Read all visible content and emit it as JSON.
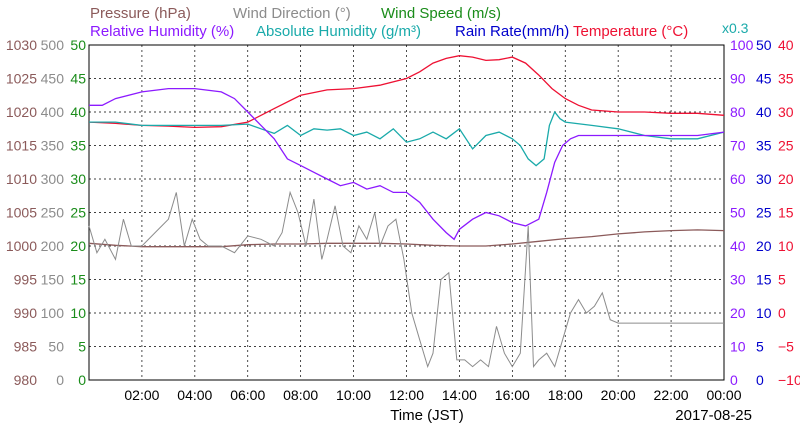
{
  "chart_data": {
    "type": "line",
    "xlabel": "Time (JST)",
    "date": "2017-08-25",
    "x_ticks": [
      "02:00",
      "04:00",
      "06:00",
      "08:00",
      "10:00",
      "12:00",
      "14:00",
      "16:00",
      "18:00",
      "20:00",
      "22:00",
      "00:00"
    ],
    "legend": {
      "row1": [
        {
          "text": "Pressure (hPa)",
          "color": "#8b5a5a"
        },
        {
          "text": "Wind Direction (°)",
          "color": "#8c8c8c"
        },
        {
          "text": "Wind Speed (m/s)",
          "color": "#1a8c1a"
        }
      ],
      "row2": [
        {
          "text": "Relative Humidity (%)",
          "color": "#8c1aff"
        },
        {
          "text": "Absolute Humidity (g/m³)",
          "color": "#1aaaaa"
        },
        {
          "text": "Rain Rate(mm/h)",
          "color": "#0000cc"
        },
        {
          "text": "Temperature (°C)",
          "color": "#ee1133"
        }
      ],
      "scale_note": "x0.3"
    },
    "axes": {
      "pressure": {
        "label": "Pressure (hPa)",
        "range": [
          980,
          1030
        ],
        "ticks": [
          "1030",
          "1025",
          "1020",
          "1015",
          "1010",
          "1005",
          "1000",
          "995",
          "990",
          "985",
          "980"
        ],
        "color": "#8b5a5a"
      },
      "wind_direction": {
        "label": "Wind Direction (°)",
        "range": [
          0,
          500
        ],
        "ticks": [
          "500",
          "450",
          "400",
          "350",
          "300",
          "250",
          "200",
          "150",
          "100",
          "50",
          "0"
        ],
        "color": "#8c8c8c"
      },
      "wind_speed": {
        "label": "Wind Speed (m/s)",
        "range": [
          0,
          50
        ],
        "ticks": [
          "50",
          "45",
          "40",
          "35",
          "30",
          "25",
          "20",
          "15",
          "10",
          "5",
          "0"
        ],
        "color": "#1a8c1a"
      },
      "relative_humidity": {
        "label": "Relative Humidity (%)",
        "range": [
          0,
          100
        ],
        "ticks": [
          "100",
          "90",
          "80",
          "70",
          "60",
          "50",
          "40",
          "30",
          "20",
          "10",
          "0"
        ],
        "color": "#8c1aff"
      },
      "rain_rate": {
        "label": "Rain Rate(mm/h)",
        "range": [
          0,
          50
        ],
        "ticks": [
          "50",
          "45",
          "40",
          "35",
          "30",
          "25",
          "20",
          "15",
          "10",
          "5",
          "0"
        ],
        "color": "#0000cc"
      },
      "temperature": {
        "label": "Temperature (°C)",
        "range": [
          -10,
          40
        ],
        "ticks": [
          "40",
          "35",
          "30",
          "25",
          "20",
          "15",
          "10",
          "5",
          "0",
          "−5",
          "−10"
        ],
        "color": "#ee1133"
      }
    },
    "series": [
      {
        "name": "Temperature (°C)",
        "axis": "temperature",
        "color": "#ee1133",
        "x": [
          0,
          1,
          2,
          3,
          4,
          5,
          6,
          7,
          8,
          9,
          10,
          11,
          12,
          12.5,
          13,
          13.5,
          14,
          14.5,
          15,
          15.5,
          16,
          16.5,
          17,
          17.5,
          18,
          18.5,
          19,
          20,
          21,
          22,
          23,
          24
        ],
        "y": [
          28.5,
          28.3,
          28.0,
          27.9,
          27.7,
          27.8,
          28.5,
          30.5,
          32.5,
          33.3,
          33.5,
          34.0,
          35.0,
          36.0,
          37.3,
          38.0,
          38.4,
          38.2,
          37.7,
          37.8,
          38.2,
          37.3,
          35.5,
          33.5,
          32.0,
          31.0,
          30.3,
          30.0,
          30.0,
          29.8,
          29.8,
          29.5
        ]
      },
      {
        "name": "Absolute Humidity (g/m³)",
        "axis": "wind_speed",
        "color": "#1aaaaa",
        "x": [
          0,
          1,
          2,
          3,
          4,
          5,
          6,
          6.5,
          7,
          7.5,
          8,
          8.5,
          9,
          9.5,
          10,
          10.5,
          11,
          11.5,
          12,
          12.5,
          13,
          13.5,
          14,
          14.5,
          15,
          15.5,
          16,
          16.3,
          16.6,
          16.9,
          17.2,
          17.4,
          17.6,
          17.8,
          18,
          19,
          20,
          21,
          22,
          23,
          24
        ],
        "y": [
          38.5,
          38.5,
          38.0,
          38.0,
          38.0,
          38.0,
          38.2,
          37.5,
          36.8,
          38.0,
          36.5,
          37.5,
          37.3,
          37.5,
          36.5,
          37.0,
          36.0,
          37.5,
          35.5,
          36.0,
          37.0,
          36.0,
          37.5,
          34.5,
          36.5,
          37.0,
          36.0,
          35.0,
          33.0,
          32.0,
          33.0,
          38.0,
          40.0,
          39.0,
          38.5,
          38.0,
          37.5,
          36.5,
          36.0,
          36.0,
          37.0
        ]
      },
      {
        "name": "Relative Humidity (%)",
        "axis": "relative_humidity",
        "color": "#8c1aff",
        "x": [
          0,
          0.5,
          1,
          2,
          3,
          4,
          5,
          5.5,
          6,
          6.5,
          7,
          7.5,
          8,
          8.5,
          9,
          9.5,
          10,
          10.5,
          11,
          11.5,
          12,
          12.5,
          13,
          13.5,
          13.8,
          14,
          14.5,
          15,
          15.5,
          16,
          16.5,
          17,
          17.3,
          17.6,
          17.9,
          18.2,
          18.5,
          19,
          20,
          21,
          22,
          23,
          24
        ],
        "y": [
          82,
          82,
          84,
          86,
          87,
          87,
          86,
          84,
          80,
          76,
          72,
          66,
          64,
          62,
          60,
          58,
          59,
          57,
          58,
          56,
          56,
          53,
          48,
          44,
          42,
          45,
          48,
          50,
          49,
          47,
          46,
          48,
          56,
          65,
          70,
          72,
          73,
          73,
          73,
          73,
          73,
          73,
          74
        ]
      },
      {
        "name": "Pressure (hPa)",
        "axis": "pressure",
        "color": "#8b5a5a",
        "x": [
          0,
          1,
          2,
          3,
          4,
          5,
          6,
          7,
          8,
          9,
          10,
          11,
          12,
          13,
          14,
          15,
          16,
          17,
          18,
          19,
          20,
          21,
          22,
          23,
          24
        ],
        "y": [
          1000.4,
          1000.1,
          999.9,
          999.9,
          999.9,
          999.9,
          1000.2,
          1000.3,
          1000.3,
          1000.4,
          1000.4,
          1000.4,
          1000.3,
          1000.1,
          1000.0,
          1000.0,
          1000.3,
          1000.7,
          1001.1,
          1001.4,
          1001.8,
          1002.1,
          1002.3,
          1002.4,
          1002.3
        ]
      },
      {
        "name": "Wind Direction (°)",
        "axis": "wind_direction",
        "color": "#8c8c8c",
        "x": [
          0,
          0.3,
          0.6,
          1.0,
          1.3,
          1.6,
          2.0,
          2.5,
          3.0,
          3.3,
          3.6,
          3.9,
          4.2,
          4.5,
          5.0,
          5.5,
          6.0,
          6.5,
          7.0,
          7.3,
          7.6,
          7.9,
          8.2,
          8.5,
          8.8,
          9.0,
          9.3,
          9.6,
          9.9,
          10.2,
          10.5,
          10.8,
          11.0,
          11.3,
          11.6,
          11.9,
          12.2,
          12.5,
          12.8,
          13.0,
          13.3,
          13.6,
          13.9,
          14.2,
          14.5,
          14.8,
          15.1,
          15.4,
          15.7,
          16.0,
          16.3,
          16.6,
          16.8,
          17.0,
          17.3,
          17.6,
          17.9,
          18.2,
          18.5,
          18.8,
          19.1,
          19.4,
          19.7,
          20.0,
          21,
          22,
          23,
          24
        ],
        "y": [
          230,
          190,
          210,
          180,
          240,
          200,
          200,
          220,
          240,
          280,
          200,
          240,
          210,
          200,
          200,
          190,
          215,
          210,
          200,
          220,
          280,
          250,
          200,
          270,
          180,
          210,
          260,
          200,
          190,
          230,
          210,
          250,
          200,
          230,
          240,
          180,
          100,
          60,
          20,
          40,
          150,
          160,
          30,
          30,
          20,
          30,
          20,
          80,
          40,
          20,
          40,
          230,
          20,
          30,
          40,
          20,
          60,
          100,
          120,
          100,
          110,
          130,
          90,
          85,
          85,
          85,
          85,
          85
        ]
      }
    ]
  }
}
